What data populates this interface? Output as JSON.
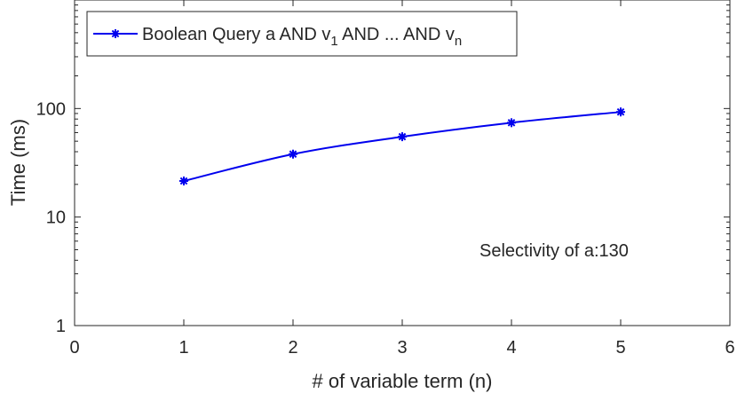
{
  "chart_data": {
    "type": "line",
    "title": "",
    "xlabel": "# of variable term (n)",
    "ylabel": "Time (ms)",
    "xlim": [
      0,
      6
    ],
    "ylim": [
      1,
      1000
    ],
    "yscale": "log",
    "grid": false,
    "legend_position": "top-left",
    "x_ticks": [
      0,
      1,
      2,
      3,
      4,
      5,
      6
    ],
    "x_tick_labels": [
      "0",
      "1",
      "2",
      "3",
      "4",
      "5",
      "6"
    ],
    "y_ticks": [
      1,
      10,
      100
    ],
    "y_tick_labels": [
      "1",
      "10",
      "100"
    ],
    "series": [
      {
        "name": "Boolean Query a AND v",
        "name_sub1": "1",
        "name_mid": " AND ... AND v",
        "name_sub2": "n",
        "color": "#0000ee",
        "marker": "asterisk",
        "x": [
          1,
          2,
          3,
          4,
          5
        ],
        "y": [
          21.5,
          38,
          55,
          74,
          93
        ]
      }
    ],
    "annotation": "Selectivity of a:130"
  }
}
